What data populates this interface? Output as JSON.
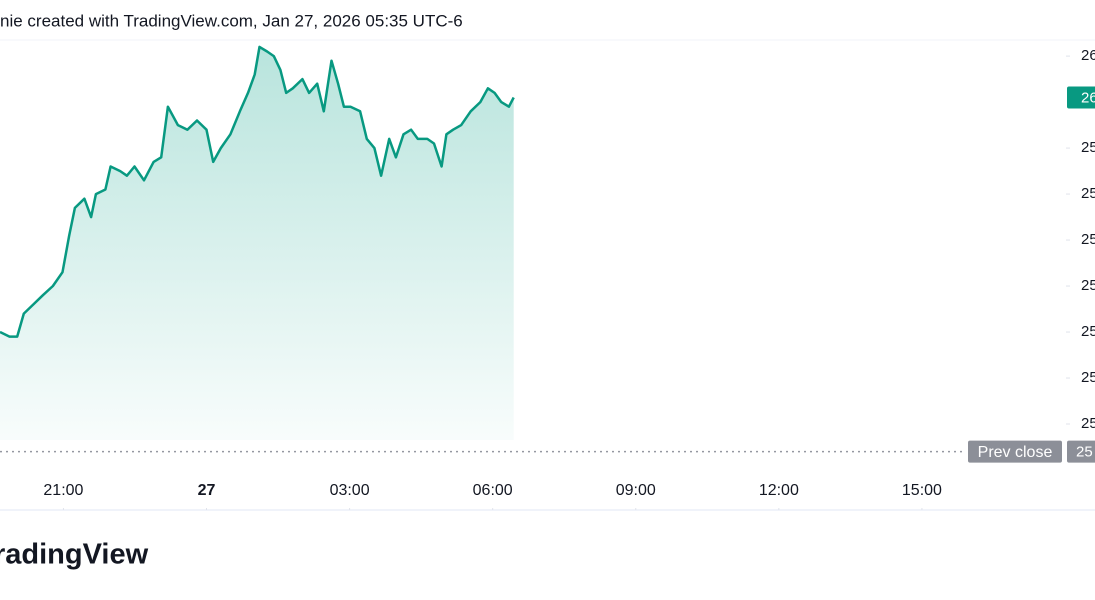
{
  "chart_data": {
    "type": "area",
    "title": "nie created with TradingView.com, Jan 27, 2026 05:35 UTC-6",
    "brand": "radingView",
    "x": [
      19.67,
      19.87,
      20.03,
      20.17,
      20.37,
      20.57,
      20.78,
      20.98,
      21.12,
      21.24,
      21.44,
      21.58,
      21.68,
      21.88,
      21.99,
      22.19,
      22.33,
      22.49,
      22.69,
      22.89,
      23.05,
      23.19,
      23.4,
      23.6,
      23.8,
      24.0,
      24.14,
      24.3,
      24.5,
      24.7,
      24.87,
      25.01,
      25.11,
      25.27,
      25.41,
      25.55,
      25.67,
      25.81,
      26.01,
      26.15,
      26.32,
      26.46,
      26.62,
      26.76,
      26.88,
      27.02,
      27.22,
      27.36,
      27.52,
      27.66,
      27.83,
      27.97,
      28.13,
      28.29,
      28.43,
      28.63,
      28.77,
      28.93,
      29.03,
      29.17,
      29.34,
      29.54,
      29.74,
      29.9,
      30.04,
      30.18,
      30.34,
      30.44
    ],
    "series": [
      {
        "color": "#089981",
        "values": [
          25.5,
          25.49,
          25.49,
          25.54,
          25.56,
          25.58,
          25.6,
          25.63,
          25.71,
          25.77,
          25.79,
          25.75,
          25.8,
          25.81,
          25.86,
          25.85,
          25.84,
          25.86,
          25.83,
          25.87,
          25.88,
          25.99,
          25.95,
          25.94,
          25.96,
          25.94,
          25.87,
          25.9,
          25.93,
          25.98,
          26.02,
          26.06,
          26.12,
          26.11,
          26.1,
          26.07,
          26.02,
          26.03,
          26.05,
          26.02,
          26.04,
          25.98,
          26.09,
          26.04,
          25.99,
          25.99,
          25.98,
          25.92,
          25.9,
          25.84,
          25.92,
          25.88,
          25.93,
          25.94,
          25.92,
          25.92,
          25.91,
          25.86,
          25.93,
          25.94,
          25.95,
          25.98,
          26.0,
          26.03,
          26.02,
          26.0,
          25.99,
          26.01
        ]
      }
    ],
    "xlim": [
      19.67,
      42.0
    ],
    "ylim": [
      25.2,
      26.135
    ],
    "xticks": [
      {
        "value": 21,
        "label": "21:00"
      },
      {
        "value": 24,
        "label": "27"
      },
      {
        "value": 27,
        "label": "03:00"
      },
      {
        "value": 30,
        "label": "06:00"
      },
      {
        "value": 33,
        "label": "09:00"
      },
      {
        "value": 36,
        "label": "12:00"
      },
      {
        "value": 39,
        "label": "15:00"
      }
    ],
    "yticks": [
      {
        "value": 26.1,
        "label": "26"
      },
      {
        "value": 25.9,
        "label": "25"
      },
      {
        "value": 25.8,
        "label": "25"
      },
      {
        "value": 25.7,
        "label": "25"
      },
      {
        "value": 25.6,
        "label": "25"
      },
      {
        "value": 25.5,
        "label": "25"
      },
      {
        "value": 25.4,
        "label": "25"
      },
      {
        "value": 25.3,
        "label": "25"
      }
    ],
    "last_price": {
      "value": 26.01,
      "label": "26"
    },
    "prev_close": {
      "name": "Prev close",
      "value": 25.24,
      "label": "25"
    }
  }
}
